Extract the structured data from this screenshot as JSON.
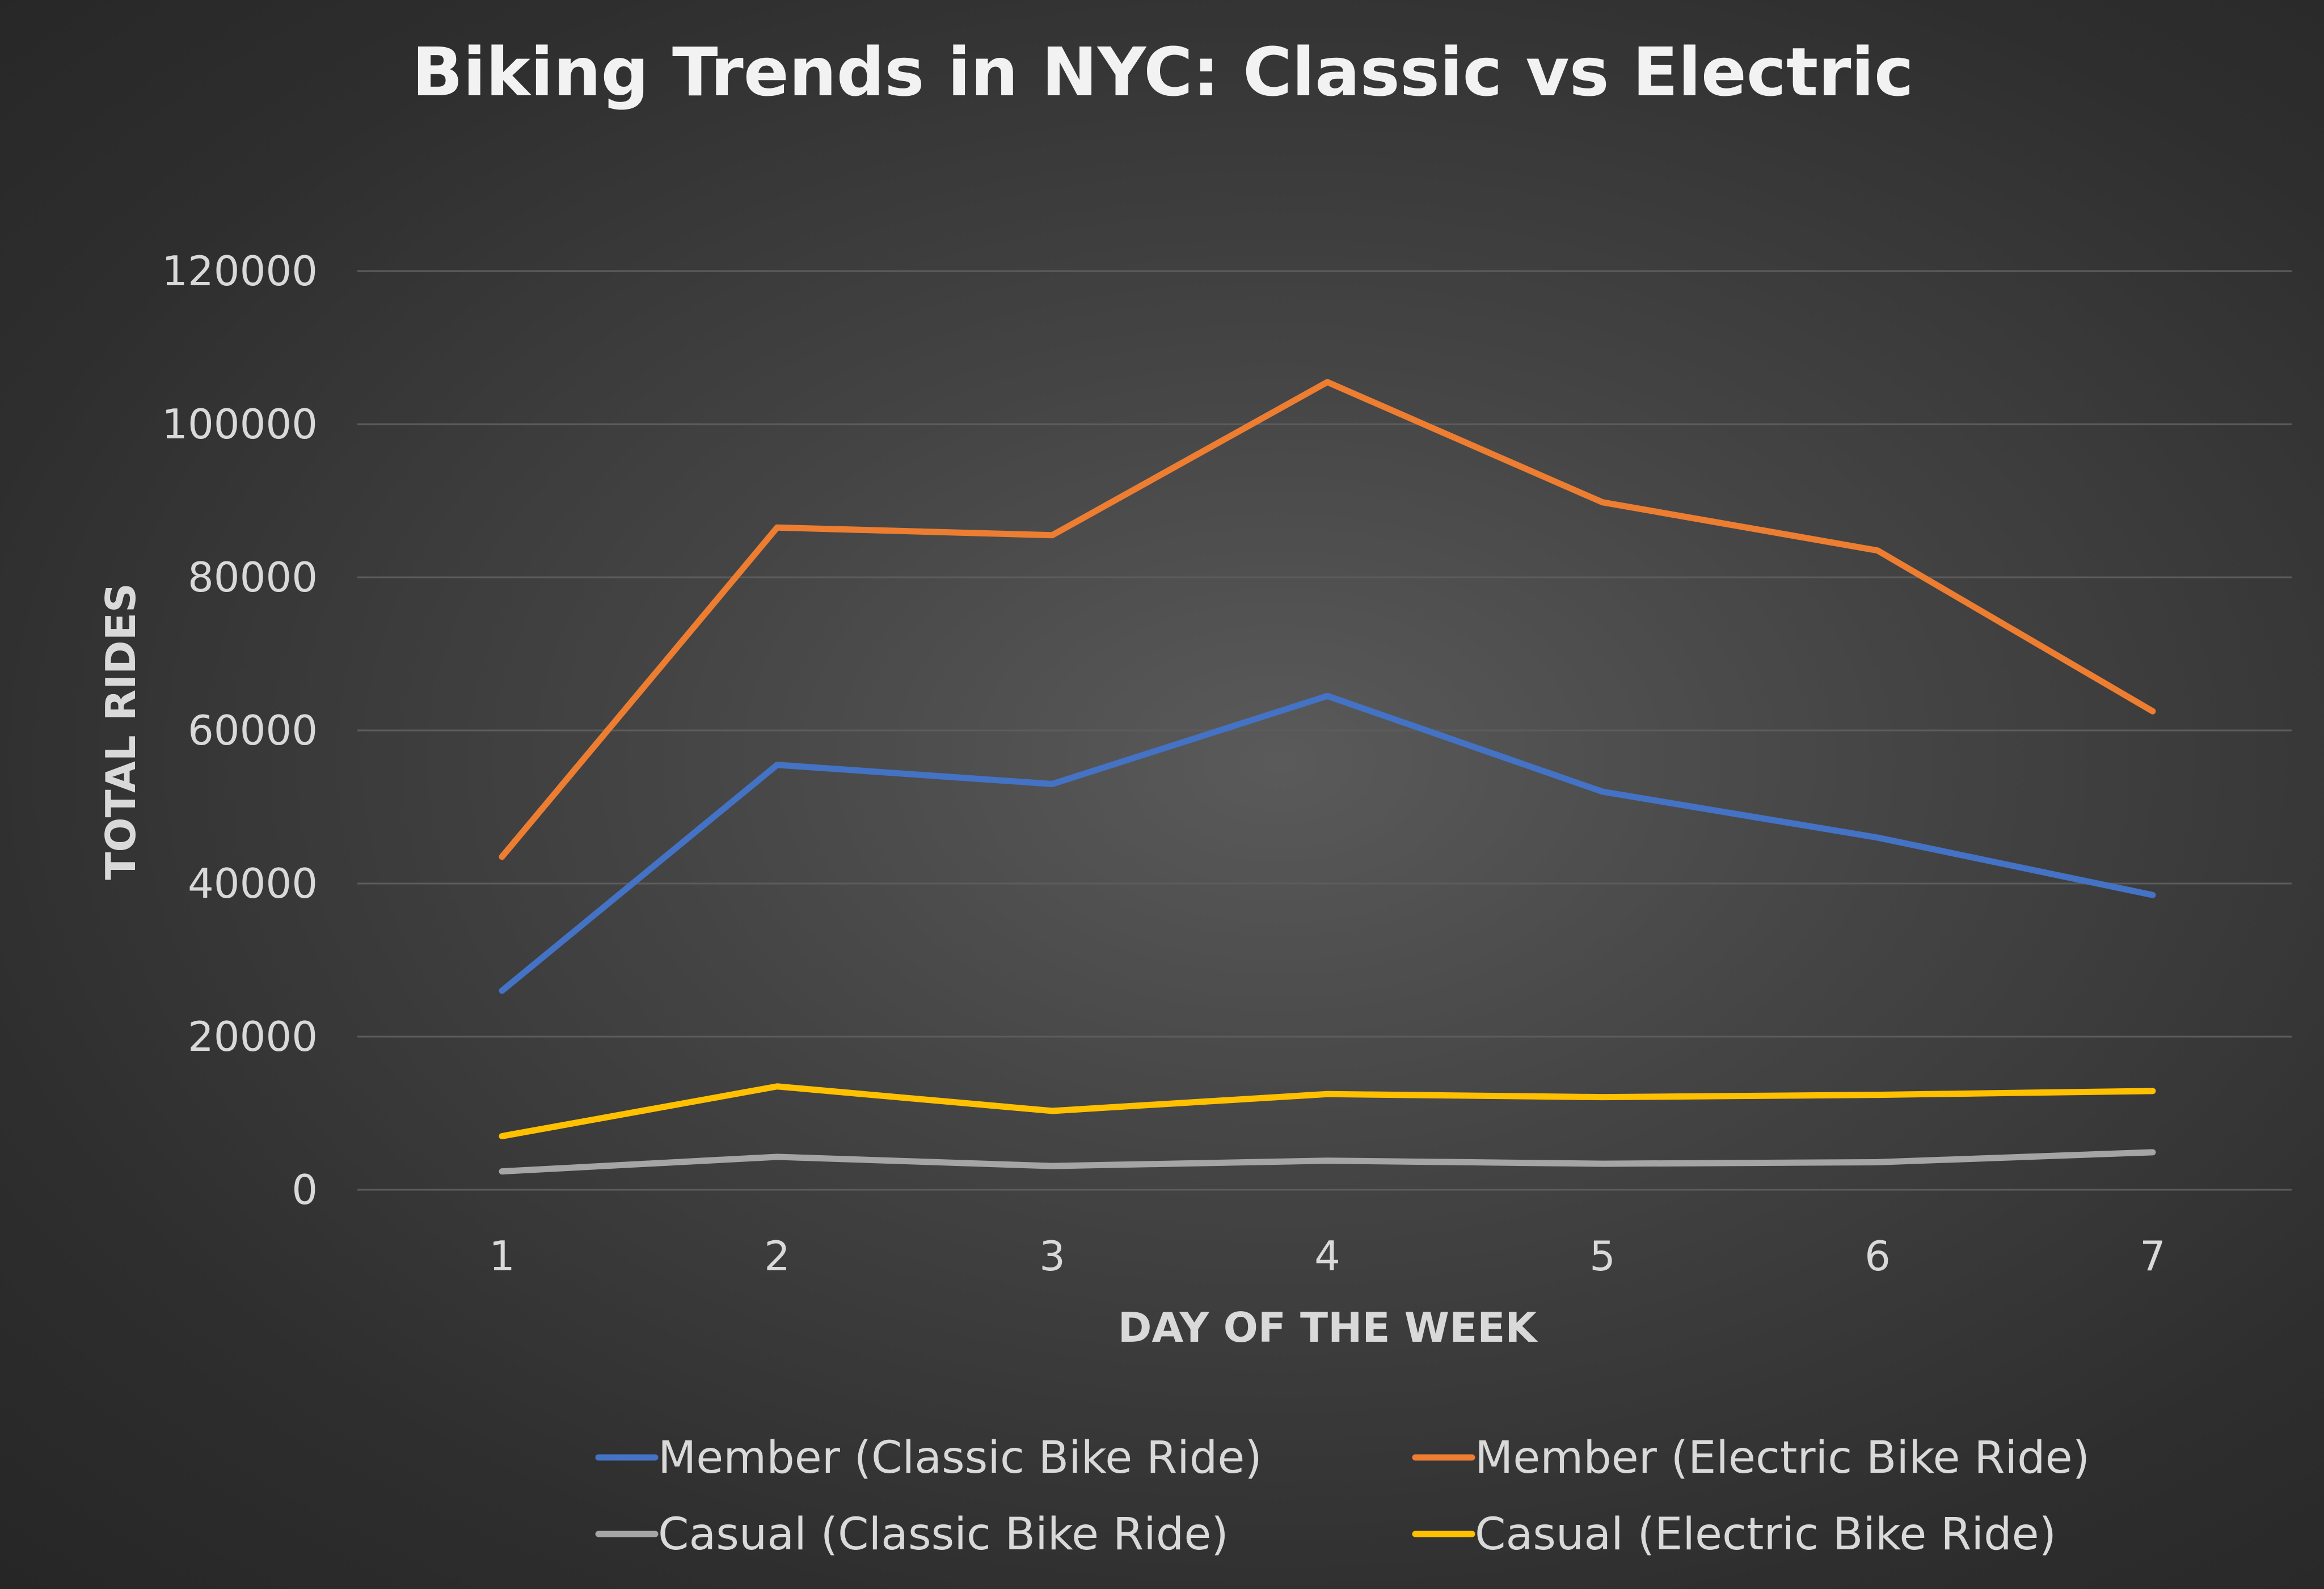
{
  "chart_data": {
    "type": "line",
    "title": "Biking Trends in NYC: Classic vs Electric",
    "xlabel": "DAY OF THE WEEK",
    "ylabel": "TOTAL RIDES",
    "categories": [
      "1",
      "2",
      "3",
      "4",
      "5",
      "6",
      "7"
    ],
    "yticks": [
      "0",
      "20000",
      "40000",
      "60000",
      "80000",
      "100000",
      "120000"
    ],
    "ylim": [
      0,
      120000
    ],
    "grid": true,
    "legend_position": "bottom",
    "series": [
      {
        "name": "Member (Classic Bike Ride)",
        "color": "#4472c4",
        "values": [
          26000,
          55500,
          53000,
          64500,
          52000,
          46000,
          38500
        ]
      },
      {
        "name": "Member (Electric Bike Ride)",
        "color": "#ed7d31",
        "values": [
          43500,
          86500,
          85500,
          105500,
          89800,
          83500,
          62500
        ]
      },
      {
        "name": "Casual (Classic Bike Ride)",
        "color": "#a5a5a5",
        "values": [
          2400,
          4300,
          3100,
          3800,
          3400,
          3600,
          4900
        ]
      },
      {
        "name": "Casual (Electric Bike Ride)",
        "color": "#ffc000",
        "values": [
          7000,
          13500,
          10300,
          12500,
          12100,
          12400,
          12900
        ]
      }
    ]
  }
}
